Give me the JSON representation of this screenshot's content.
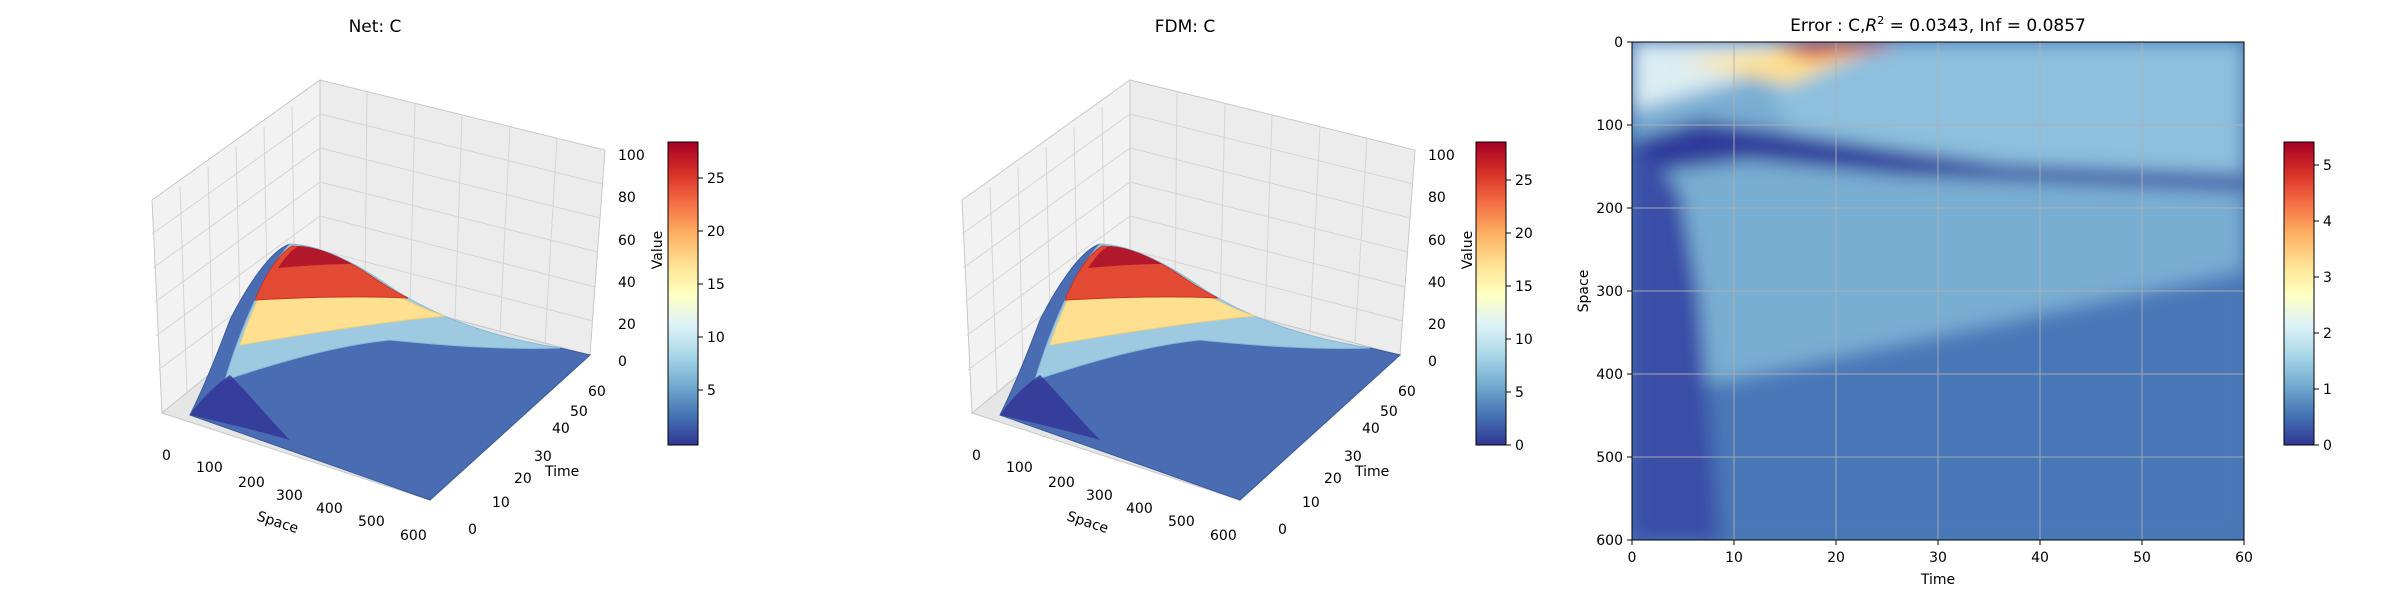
{
  "chart_data": [
    {
      "type": "surface3d",
      "title": "Net: C",
      "xlabel": "Space",
      "ylabel": "Time",
      "zlabel": "Value",
      "xlim": [
        0,
        600
      ],
      "ylim": [
        0,
        60
      ],
      "zlim": [
        0,
        100
      ],
      "x_ticks": [
        "0",
        "100",
        "200",
        "300",
        "400",
        "500",
        "600"
      ],
      "y_ticks": [
        "0",
        "10",
        "20",
        "30",
        "40",
        "50",
        "60"
      ],
      "z_ticks": [
        "0",
        "20",
        "40",
        "60",
        "80",
        "100"
      ],
      "surface_peak": {
        "space": 100,
        "time": 25,
        "value": 28.5
      },
      "colorbar": {
        "range": [
          1,
          28.5
        ],
        "ticks": [
          "5",
          "10",
          "15",
          "20",
          "25"
        ],
        "colormap": "RdYlBu_r"
      }
    },
    {
      "type": "surface3d",
      "title": "FDM: C",
      "xlabel": "Space",
      "ylabel": "Time",
      "zlabel": "Value",
      "xlim": [
        0,
        600
      ],
      "ylim": [
        0,
        60
      ],
      "zlim": [
        0,
        100
      ],
      "x_ticks": [
        "0",
        "100",
        "200",
        "300",
        "400",
        "500",
        "600"
      ],
      "y_ticks": [
        "0",
        "10",
        "20",
        "30",
        "40",
        "50",
        "60"
      ],
      "z_ticks": [
        "0",
        "20",
        "40",
        "60",
        "80",
        "100"
      ],
      "surface_peak": {
        "space": 100,
        "time": 25,
        "value": 28.5
      },
      "colorbar": {
        "range": [
          0,
          28.5
        ],
        "ticks": [
          "0",
          "5",
          "10",
          "15",
          "20",
          "25"
        ],
        "colormap": "RdYlBu_r"
      }
    },
    {
      "type": "heatmap",
      "title_prefix": "Error : C,",
      "title_r2_base": "R",
      "title_r2_exp": "2",
      "title_suffix": " = 0.0343, Inf = 0.0857",
      "xlabel": "Time",
      "ylabel": "Space",
      "xlim": [
        0,
        60
      ],
      "ylim": [
        600,
        0
      ],
      "x_ticks": [
        "0",
        "10",
        "20",
        "30",
        "40",
        "50",
        "60"
      ],
      "y_ticks": [
        "0",
        "100",
        "200",
        "300",
        "400",
        "500",
        "600"
      ],
      "grid": true,
      "max_error_location": {
        "time": 20,
        "space": 0,
        "value": 5.3
      },
      "colorbar": {
        "range": [
          0,
          5.4
        ],
        "ticks": [
          "0",
          "1",
          "2",
          "3",
          "4",
          "5"
        ],
        "colormap": "RdYlBu_r"
      }
    }
  ]
}
